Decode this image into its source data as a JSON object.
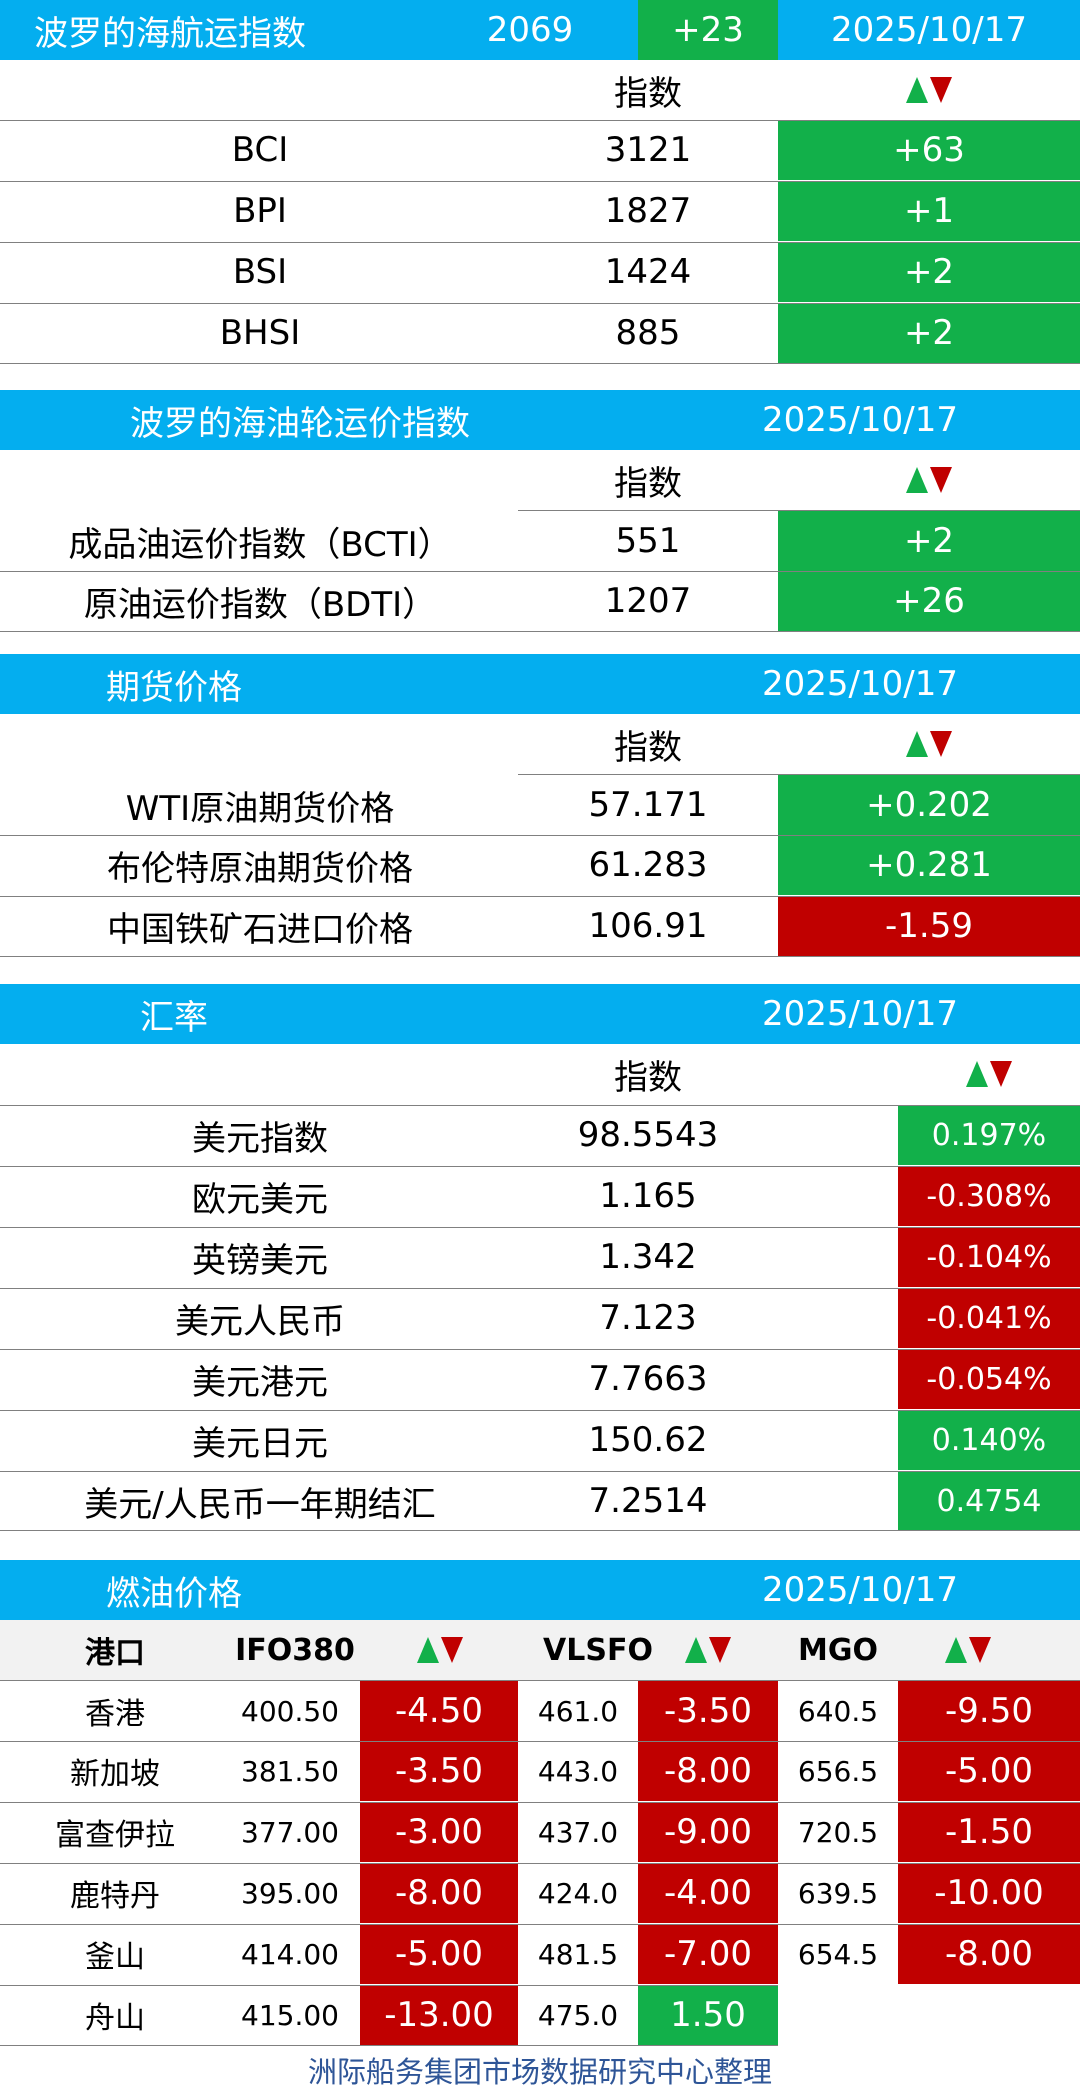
{
  "baltic_dry": {
    "title": "波罗的海航运指数",
    "value": "2069",
    "change": "+23",
    "date": "2025/10/17",
    "header_label": "指数",
    "rows": [
      {
        "name": "BCI",
        "value": "3121",
        "change": "+63"
      },
      {
        "name": "BPI",
        "value": "1827",
        "change": "+1"
      },
      {
        "name": "BSI",
        "value": "1424",
        "change": "+2"
      },
      {
        "name": "BHSI",
        "value": "885",
        "change": "+2"
      }
    ]
  },
  "tanker": {
    "title": "波罗的海油轮运价指数",
    "date": "2025/10/17",
    "header_label": "指数",
    "rows": [
      {
        "name": "成品油运价指数（BCTI）",
        "value": "551",
        "change": "+2"
      },
      {
        "name": "原油运价指数（BDTI）",
        "value": "1207",
        "change": "+26"
      }
    ]
  },
  "futures": {
    "title": "期货价格",
    "date": "2025/10/17",
    "header_label": "指数",
    "rows": [
      {
        "name": "WTI原油期货价格",
        "value": "57.171",
        "change": "+0.202"
      },
      {
        "name": "布伦特原油期货价格",
        "value": "61.283",
        "change": "+0.281"
      },
      {
        "name": "中国铁矿石进口价格",
        "value": "106.91",
        "change": "-1.59"
      }
    ]
  },
  "fx": {
    "title": "汇率",
    "date": "2025/10/17",
    "header_label": "指数",
    "rows": [
      {
        "name": "美元指数",
        "value": "98.5543",
        "change": "0.197%"
      },
      {
        "name": "欧元美元",
        "value": "1.165",
        "change": "-0.308%"
      },
      {
        "name": "英镑美元",
        "value": "1.342",
        "change": "-0.104%"
      },
      {
        "name": "美元人民币",
        "value": "7.123",
        "change": "-0.041%"
      },
      {
        "name": "美元港元",
        "value": "7.7663",
        "change": "-0.054%"
      },
      {
        "name": "美元日元",
        "value": "150.62",
        "change": "0.140%"
      },
      {
        "name": "美元/人民币一年期结汇",
        "value": "7.2514",
        "change": "0.4754"
      }
    ]
  },
  "fuel": {
    "title": "燃油价格",
    "date": "2025/10/17",
    "headers": {
      "port": "港口",
      "ifo": "IFO380",
      "vlsfo": "VLSFO",
      "mgo": "MGO"
    },
    "rows": [
      {
        "port": "香港",
        "ifo": "400.50",
        "ifo_chg": "-4.50",
        "vlsfo": "461.0",
        "vlsfo_chg": "-3.50",
        "mgo": "640.5",
        "mgo_chg": "-9.50"
      },
      {
        "port": "新加坡",
        "ifo": "381.50",
        "ifo_chg": "-3.50",
        "vlsfo": "443.0",
        "vlsfo_chg": "-8.00",
        "mgo": "656.5",
        "mgo_chg": "-5.00"
      },
      {
        "port": "富查伊拉",
        "ifo": "377.00",
        "ifo_chg": "-3.00",
        "vlsfo": "437.0",
        "vlsfo_chg": "-9.00",
        "mgo": "720.5",
        "mgo_chg": "-1.50"
      },
      {
        "port": "鹿特丹",
        "ifo": "395.00",
        "ifo_chg": "-8.00",
        "vlsfo": "424.0",
        "vlsfo_chg": "-4.00",
        "mgo": "639.5",
        "mgo_chg": "-10.00"
      },
      {
        "port": "釜山",
        "ifo": "414.00",
        "ifo_chg": "-5.00",
        "vlsfo": "481.5",
        "vlsfo_chg": "-7.00",
        "mgo": "654.5",
        "mgo_chg": "-8.00"
      },
      {
        "port": "舟山",
        "ifo": "415.00",
        "ifo_chg": "-13.00",
        "vlsfo": "475.0",
        "vlsfo_chg": "1.50",
        "mgo": "",
        "mgo_chg": ""
      }
    ]
  },
  "footer": "洲际船务集团市场数据研究中心整理",
  "colors": {
    "header_blue": "#04AEEF",
    "up_green": "#12B04A",
    "down_red": "#C00000",
    "footer_blue": "#2E5597"
  }
}
